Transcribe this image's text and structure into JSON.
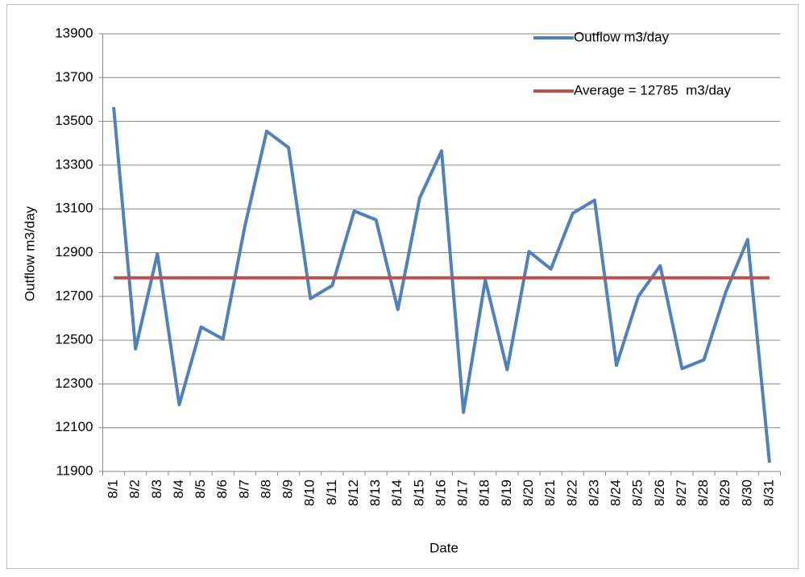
{
  "chart_data": {
    "type": "line",
    "x_label": "Date",
    "y_label": "Outflow m3/day",
    "categories": [
      "8/1",
      "8/2",
      "8/3",
      "8/4",
      "8/5",
      "8/6",
      "8/7",
      "8/8",
      "8/9",
      "8/10",
      "8/11",
      "8/12",
      "8/13",
      "8/14",
      "8/15",
      "8/16",
      "8/17",
      "8/18",
      "8/19",
      "8/20",
      "8/21",
      "8/22",
      "8/23",
      "8/24",
      "8/25",
      "8/26",
      "8/27",
      "8/28",
      "8/29",
      "8/30",
      "8/31"
    ],
    "series": [
      {
        "name": "Outflow m3/day",
        "color": "#4f81bd",
        "values": [
          13565,
          12460,
          12895,
          12205,
          12560,
          12505,
          13020,
          13455,
          13380,
          12690,
          12750,
          13090,
          13050,
          12640,
          13150,
          13365,
          12170,
          12775,
          12365,
          12905,
          12825,
          13080,
          13140,
          12385,
          12700,
          12840,
          12370,
          12410,
          12720,
          12960,
          11940
        ]
      },
      {
        "name": "Average = 12785  m3/day",
        "color": "#c0504d",
        "values": [
          12785,
          12785,
          12785,
          12785,
          12785,
          12785,
          12785,
          12785,
          12785,
          12785,
          12785,
          12785,
          12785,
          12785,
          12785,
          12785,
          12785,
          12785,
          12785,
          12785,
          12785,
          12785,
          12785,
          12785,
          12785,
          12785,
          12785,
          12785,
          12785,
          12785,
          12785
        ]
      }
    ],
    "ylim": [
      11900,
      13900
    ],
    "yticks": [
      11900,
      12100,
      12300,
      12500,
      12700,
      12900,
      13100,
      13300,
      13500,
      13700,
      13900
    ],
    "grid": true,
    "legend": "top-right"
  }
}
